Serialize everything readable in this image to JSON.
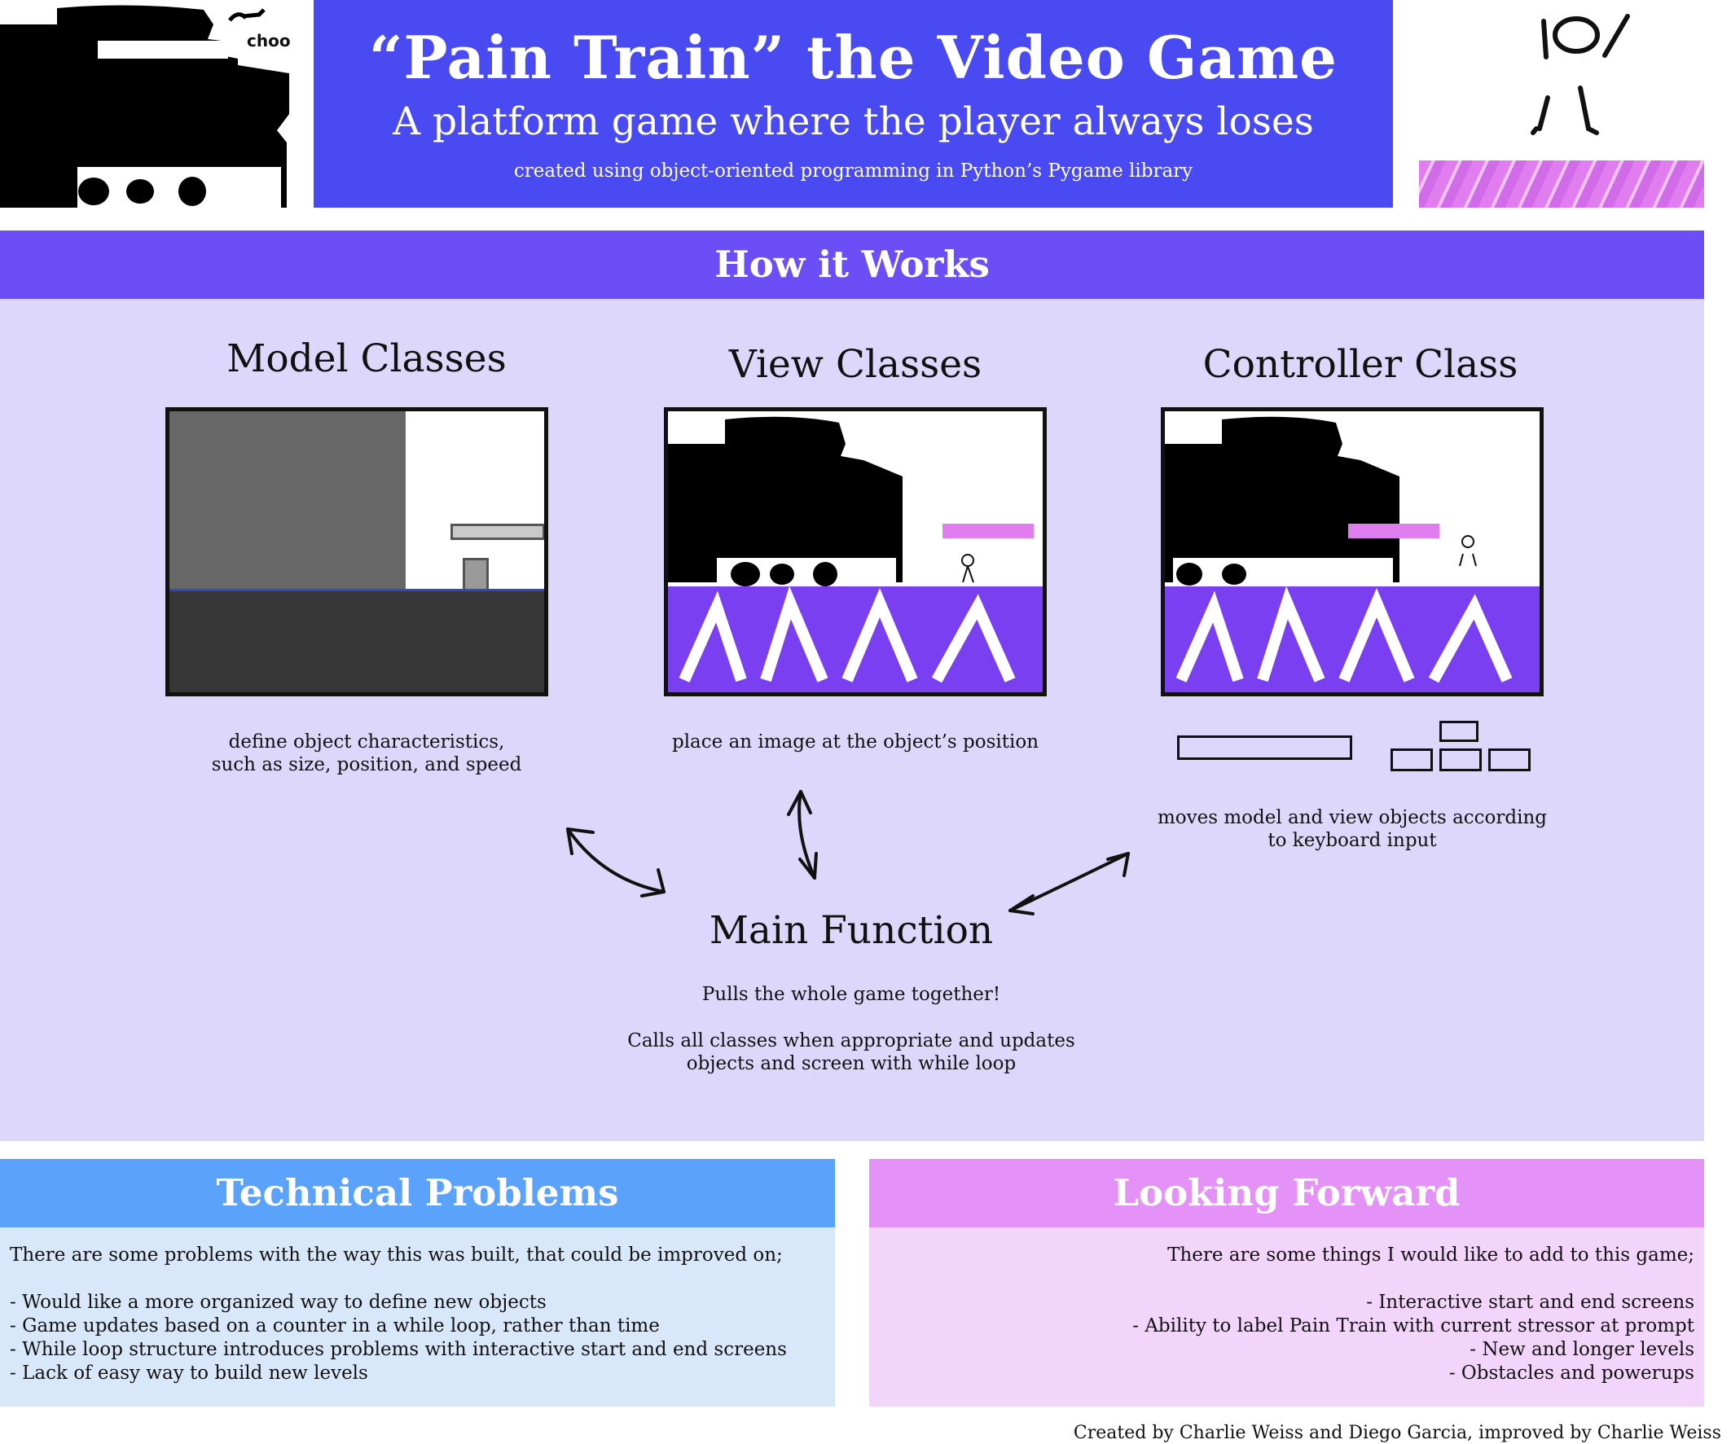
{
  "header": {
    "title": "“Pain Train” the Video Game",
    "subtitle": "A platform game where the player always loses",
    "tagline": "created using object-oriented programming in Python’s Pygame library"
  },
  "train_logo": {
    "text": "choo"
  },
  "how_it_works": {
    "heading": "How it Works",
    "model": {
      "title": "Model Classes",
      "description": "define object characteristics,\nsuch as size, position, and speed"
    },
    "view": {
      "title": "View Classes",
      "description": "place an image at the object’s position"
    },
    "controller": {
      "title": "Controller Class",
      "description": "moves model and view objects according\nto keyboard input"
    },
    "main": {
      "title": "Main Function",
      "line1": "Pulls the whole game together!",
      "line2": "Calls all classes when appropriate and updates\nobjects and screen with while loop"
    }
  },
  "technical_problems": {
    "heading": "Technical Problems",
    "intro": "There are some problems with the way this was built, that could be improved on;",
    "items": [
      "- Would like a more organized way to define new objects",
      "- Game updates based on a counter in a while loop, rather than time",
      "- While loop structure introduces problems with interactive start and end screens",
      "- Lack of easy way to build new levels"
    ]
  },
  "looking_forward": {
    "heading": "Looking Forward",
    "intro": "There are some things I would like to add to this game;",
    "items": [
      "- Interactive start and end screens",
      "- Ability to label Pain Train with current stressor at prompt",
      "- New and longer levels",
      "- Obstacles and powerups"
    ]
  },
  "credit": "Created by Charlie Weiss and Diego Garcia, improved by Charlie Weiss",
  "colors": {
    "title_bg": "#4a4af2",
    "section_bg": "#6b4ef6",
    "panel_bg": "#ddd8fb",
    "tech_bg": "#5aa2fb",
    "forward_bg": "#e592f8",
    "platform_purple": "#7a3ff0",
    "platform_pink": "#e07ef0"
  }
}
